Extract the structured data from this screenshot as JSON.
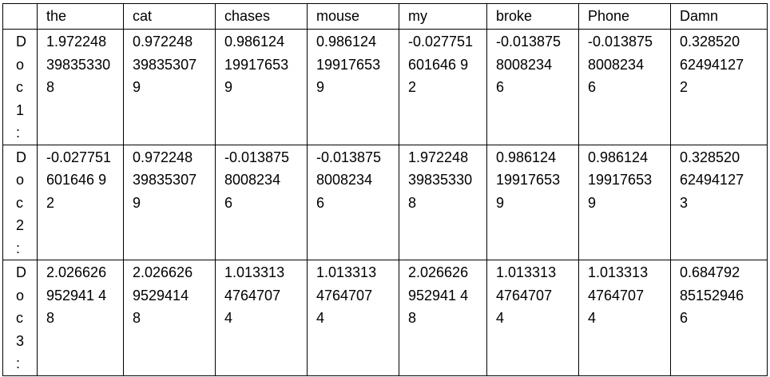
{
  "table": {
    "corner": "",
    "headers": [
      "the",
      "cat",
      "chases",
      "mouse",
      "my",
      "broke",
      "Phone",
      "Damn"
    ],
    "rows": [
      {
        "label": "Doc1:",
        "cells": [
          "1.972248398353308",
          "0.97224839835307 9",
          "0.98612419917653 9",
          "0.98612419917653 9",
          "-0.027751601646 92",
          "-0.0138758008234 6",
          "-0.0138758008234 6",
          "0.32852062494127 2"
        ]
      },
      {
        "label": "Doc2:",
        "cells": [
          "-0.027751601646 92",
          "0.97224839835307 9",
          "-0.0138758008234 6",
          "-0.0138758008234 6",
          "1.972248398353308",
          "0.98612419917653 9",
          "0.98612419917653 9",
          "0.32852062494127 3"
        ]
      },
      {
        "label": "Doc3:",
        "cells": [
          "2.026626952941 48",
          "2.0266269529414 8",
          "1.0133134764707 4",
          "1.0133134764707 4",
          "2.026626952941 48",
          "1.0133134764707 4",
          "1.0133134764707 4",
          "0.68479285152946 6"
        ]
      }
    ]
  }
}
